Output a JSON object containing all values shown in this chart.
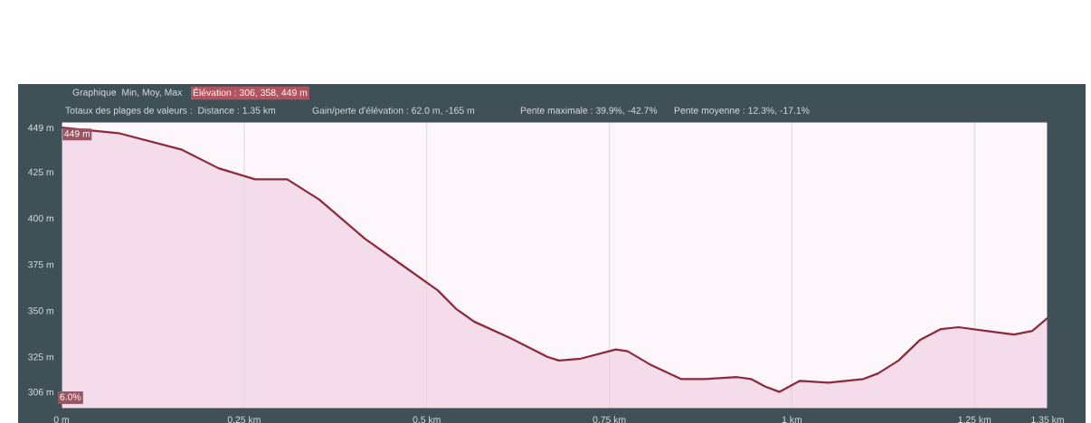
{
  "chart_data": {
    "type": "area",
    "x": [
      0,
      0.078,
      0.165,
      0.215,
      0.265,
      0.309,
      0.353,
      0.415,
      0.465,
      0.515,
      0.54,
      0.565,
      0.615,
      0.665,
      0.681,
      0.711,
      0.759,
      0.775,
      0.805,
      0.848,
      0.881,
      0.925,
      0.944,
      0.963,
      0.983,
      1.011,
      1.05,
      1.098,
      1.118,
      1.146,
      1.175,
      1.204,
      1.228,
      1.266,
      1.304,
      1.329,
      1.35
    ],
    "series": [
      {
        "color": "#8b2a3a",
        "values": [
          449,
          446,
          437,
          427,
          421,
          421,
          410,
          389,
          375,
          361,
          351,
          344,
          335,
          325,
          323,
          324,
          329,
          328,
          321,
          313,
          313,
          314,
          313,
          309,
          306,
          312,
          311,
          313,
          316,
          323,
          334,
          340,
          341,
          339,
          337,
          339,
          346
        ]
      }
    ],
    "xlim": [
      0,
      1.35
    ],
    "ylim": [
      297,
      452
    ],
    "xticks": [
      {
        "value": 0,
        "label": "0 m"
      },
      {
        "value": 0.25,
        "label": "0.25 km"
      },
      {
        "value": 0.5,
        "label": "0.5 km"
      },
      {
        "value": 0.75,
        "label": "0.75 km"
      },
      {
        "value": 1,
        "label": "1 km"
      },
      {
        "value": 1.25,
        "label": "1.25 km"
      },
      {
        "value": 1.35,
        "label": "1.35 km"
      }
    ],
    "yticks": [
      {
        "value": 306,
        "label": "306 m"
      },
      {
        "value": 325,
        "label": "325 m"
      },
      {
        "value": 350,
        "label": "350 m"
      },
      {
        "value": 375,
        "label": "375 m"
      },
      {
        "value": 400,
        "label": "400 m"
      },
      {
        "value": 425,
        "label": "425 m"
      },
      {
        "value": 449,
        "label": "449 m"
      }
    ],
    "grid": "x",
    "annotations": [
      "Graphique  Min, Moy, Max",
      "Élévation : 306, 358, 449 m",
      "Totaux des plages de valeurs :  Distance : 1.35 km",
      "Gain/perte d'élévation : 62.0 m, -165 m",
      "Pente maximale : 39.9%, -42.7%",
      "Pente moyenne : 12.3%, -17.1%",
      "6.0%",
      {
        "text": "449 m",
        "x": 0,
        "y": 449
      }
    ]
  }
}
